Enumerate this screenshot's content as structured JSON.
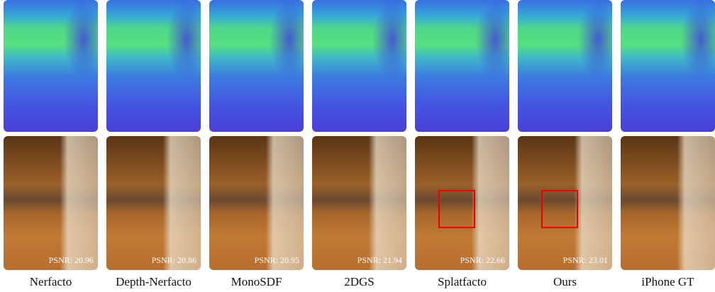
{
  "columns": [
    {
      "label": "Nerfacto",
      "psnr": "PSNR: 20.96"
    },
    {
      "label": "Depth-Nerfacto",
      "psnr": "PSNR: 20.86"
    },
    {
      "label": "MonoSDF",
      "psnr": "PSNR: 20.95"
    },
    {
      "label": "2DGS",
      "psnr": "PSNR: 21.94"
    },
    {
      "label": "Splatfacto",
      "psnr": "PSNR: 22.66",
      "highlight": true
    },
    {
      "label": "Ours",
      "psnr": "PSNR: 23.01",
      "highlight": true
    },
    {
      "label": "iPhone GT"
    }
  ]
}
